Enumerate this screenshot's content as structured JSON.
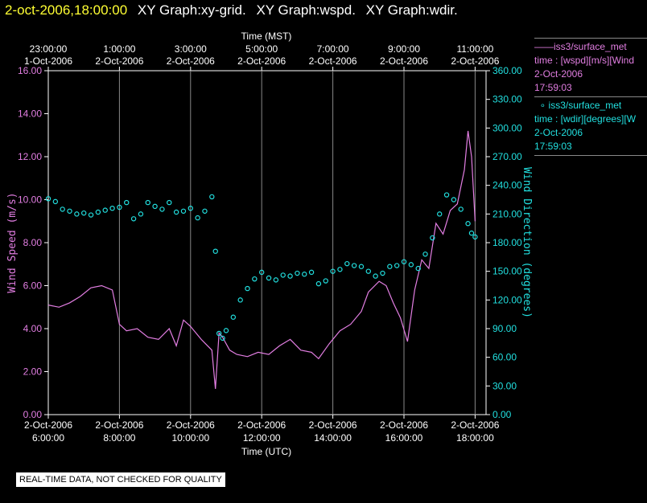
{
  "header": {
    "datetime": "2-oct-2006,18:00:00",
    "graph_titles": [
      "XY Graph:xy-grid.",
      "XY Graph:wspd.",
      "XY Graph:wdir."
    ]
  },
  "legend": {
    "series1": {
      "marker": "——",
      "name": "iss3/surface_met",
      "desc": "time : [wspd][m/s][Wind",
      "date": "2-Oct-2006",
      "time": "17:59:03"
    },
    "series2": {
      "marker": "∘",
      "name": "iss3/surface_met",
      "desc": "time : [wdir][degrees][W",
      "date": "2-Oct-2006",
      "time": "17:59:03"
    }
  },
  "notice": "REAL-TIME DATA, NOT CHECKED FOR QUALITY",
  "colors": {
    "wspd": "#e27ee2",
    "wdir": "#22e0e0",
    "grid": "#888888",
    "date": "#ffff33"
  },
  "chart_data": {
    "type": "line",
    "xlabel_bottom": "Time (UTC)",
    "xlabel_top": "Time (MST)",
    "ylabel_left": "Wind Speed (m/s)",
    "ylabel_right": "Wind Direction (degrees)",
    "xlim": [
      6,
      18.1
    ],
    "ylim_left": [
      0,
      16
    ],
    "ylim_right": [
      0,
      360
    ],
    "grid": true,
    "bottom_ticks": [
      {
        "x": 6,
        "line1": "2-Oct-2006",
        "line2": "6:00:00"
      },
      {
        "x": 8,
        "line1": "2-Oct-2006",
        "line2": "8:00:00"
      },
      {
        "x": 10,
        "line1": "2-Oct-2006",
        "line2": "10:00:00"
      },
      {
        "x": 12,
        "line1": "2-Oct-2006",
        "line2": "12:00:00"
      },
      {
        "x": 14,
        "line1": "2-Oct-2006",
        "line2": "14:00:00"
      },
      {
        "x": 16,
        "line1": "2-Oct-2006",
        "line2": "16:00:00"
      },
      {
        "x": 18,
        "line1": "2-Oct-2006",
        "line2": "18:00:00"
      }
    ],
    "top_ticks": [
      {
        "x": 6,
        "line1": "23:00:00",
        "line2": "1-Oct-2006"
      },
      {
        "x": 8,
        "line1": "1:00:00",
        "line2": "2-Oct-2006"
      },
      {
        "x": 10,
        "line1": "3:00:00",
        "line2": "2-Oct-2006"
      },
      {
        "x": 12,
        "line1": "5:00:00",
        "line2": "2-Oct-2006"
      },
      {
        "x": 14,
        "line1": "7:00:00",
        "line2": "2-Oct-2006"
      },
      {
        "x": 16,
        "line1": "9:00:00",
        "line2": "2-Oct-2006"
      },
      {
        "x": 18,
        "line1": "11:00:00",
        "line2": "2-Oct-2006"
      }
    ],
    "left_ticks": [
      "0.00",
      "2.00",
      "4.00",
      "6.00",
      "8.00",
      "10.00",
      "12.00",
      "14.00",
      "16.00"
    ],
    "right_ticks": [
      "0.00",
      "30.00",
      "60.00",
      "90.00",
      "120.00",
      "150.00",
      "180.00",
      "210.00",
      "240.00",
      "270.00",
      "300.00",
      "330.00",
      "360.00"
    ],
    "series": [
      {
        "name": "iss3/surface_met wspd",
        "axis": "left",
        "style": "line",
        "x": [
          6.0,
          6.3,
          6.6,
          6.9,
          7.2,
          7.5,
          7.8,
          8.0,
          8.2,
          8.5,
          8.8,
          9.1,
          9.4,
          9.6,
          9.8,
          10.0,
          10.3,
          10.6,
          10.7,
          10.8,
          10.9,
          11.1,
          11.3,
          11.6,
          11.9,
          12.2,
          12.5,
          12.8,
          13.1,
          13.4,
          13.6,
          13.9,
          14.2,
          14.5,
          14.8,
          15.0,
          15.3,
          15.5,
          15.7,
          15.9,
          16.1,
          16.3,
          16.5,
          16.7,
          16.9,
          17.1,
          17.3,
          17.5,
          17.7,
          17.8,
          17.9,
          18.0
        ],
        "values": [
          5.1,
          5.0,
          5.2,
          5.5,
          5.9,
          6.0,
          5.8,
          4.2,
          3.9,
          4.0,
          3.6,
          3.5,
          4.0,
          3.2,
          4.4,
          4.1,
          3.5,
          3.0,
          1.2,
          3.8,
          3.6,
          3.0,
          2.8,
          2.7,
          2.9,
          2.8,
          3.2,
          3.5,
          3.0,
          2.9,
          2.6,
          3.3,
          3.9,
          4.2,
          4.8,
          5.7,
          6.2,
          6.0,
          5.2,
          4.5,
          3.4,
          5.8,
          7.2,
          6.8,
          8.9,
          8.4,
          9.5,
          9.8,
          11.4,
          13.2,
          12.0,
          9.0
        ]
      },
      {
        "name": "iss3/surface_met wdir",
        "axis": "right",
        "style": "points",
        "x": [
          6.0,
          6.2,
          6.4,
          6.6,
          6.8,
          7.0,
          7.2,
          7.4,
          7.6,
          7.8,
          8.0,
          8.2,
          8.4,
          8.6,
          8.8,
          9.0,
          9.2,
          9.4,
          9.6,
          9.8,
          10.0,
          10.2,
          10.4,
          10.6,
          10.7,
          10.8,
          10.9,
          11.0,
          11.2,
          11.4,
          11.6,
          11.8,
          12.0,
          12.2,
          12.4,
          12.6,
          12.8,
          13.0,
          13.2,
          13.4,
          13.6,
          13.8,
          14.0,
          14.2,
          14.4,
          14.6,
          14.8,
          15.0,
          15.2,
          15.4,
          15.6,
          15.8,
          16.0,
          16.2,
          16.4,
          16.6,
          16.8,
          17.0,
          17.2,
          17.4,
          17.6,
          17.8,
          17.9,
          18.0
        ],
        "values": [
          226,
          223,
          215,
          213,
          210,
          211,
          209,
          212,
          214,
          216,
          217,
          222,
          205,
          210,
          222,
          218,
          215,
          222,
          212,
          213,
          216,
          206,
          213,
          228,
          171,
          85,
          80,
          88,
          102,
          120,
          132,
          142,
          149,
          143,
          141,
          146,
          145,
          148,
          147,
          149,
          137,
          140,
          150,
          152,
          158,
          156,
          155,
          150,
          145,
          148,
          155,
          156,
          160,
          157,
          153,
          168,
          185,
          210,
          230,
          225,
          215,
          200,
          190,
          186
        ]
      }
    ]
  }
}
